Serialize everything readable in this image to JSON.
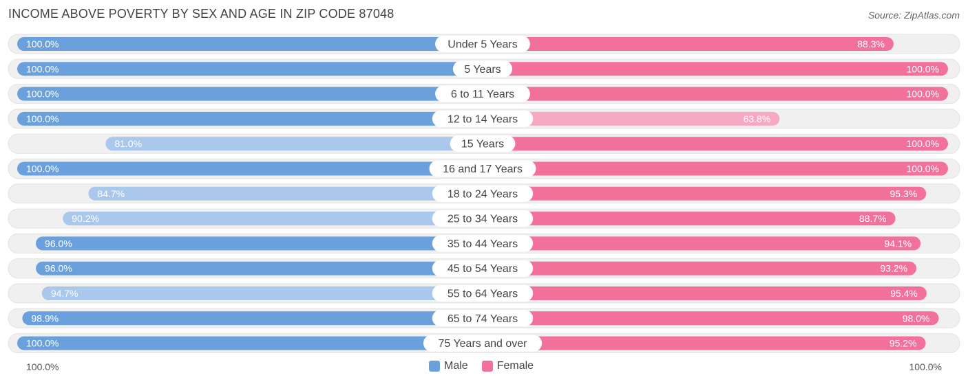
{
  "header": {
    "title": "INCOME ABOVE POVERTY BY SEX AND AGE IN ZIP CODE 87048",
    "source": "Source: ZipAtlas.com"
  },
  "colors": {
    "male_strong": "#6aa0dc",
    "male_light": "#a9c8ec",
    "female_strong": "#f2719b",
    "female_light": "#f7a9c3",
    "track": "#efefef"
  },
  "axis": {
    "left_label": "100.0%",
    "right_label": "100.0%"
  },
  "legend": {
    "male": "Male",
    "female": "Female"
  },
  "chart_data": {
    "type": "bar",
    "orientation": "diverging-horizontal",
    "title": "INCOME ABOVE POVERTY BY SEX AND AGE IN ZIP CODE 87048",
    "xlim": [
      0,
      100
    ],
    "categories": [
      "Under 5 Years",
      "5 Years",
      "6 to 11 Years",
      "12 to 14 Years",
      "15 Years",
      "16 and 17 Years",
      "18 to 24 Years",
      "25 to 34 Years",
      "35 to 44 Years",
      "45 to 54 Years",
      "55 to 64 Years",
      "65 to 74 Years",
      "75 Years and over"
    ],
    "series": [
      {
        "name": "Male",
        "values": [
          100.0,
          100.0,
          100.0,
          100.0,
          81.0,
          100.0,
          84.7,
          90.2,
          96.0,
          96.0,
          94.7,
          98.9,
          100.0
        ],
        "labels": [
          "100.0%",
          "100.0%",
          "100.0%",
          "100.0%",
          "81.0%",
          "100.0%",
          "84.7%",
          "90.2%",
          "96.0%",
          "96.0%",
          "94.7%",
          "98.9%",
          "100.0%"
        ]
      },
      {
        "name": "Female",
        "values": [
          88.3,
          100.0,
          100.0,
          63.8,
          100.0,
          100.0,
          95.3,
          88.7,
          94.1,
          93.2,
          95.4,
          98.0,
          95.2
        ],
        "labels": [
          "88.3%",
          "100.0%",
          "100.0%",
          "63.8%",
          "100.0%",
          "100.0%",
          "95.3%",
          "88.7%",
          "94.1%",
          "93.2%",
          "95.4%",
          "98.0%",
          "95.2%"
        ]
      }
    ],
    "legend_position": "bottom-center"
  }
}
